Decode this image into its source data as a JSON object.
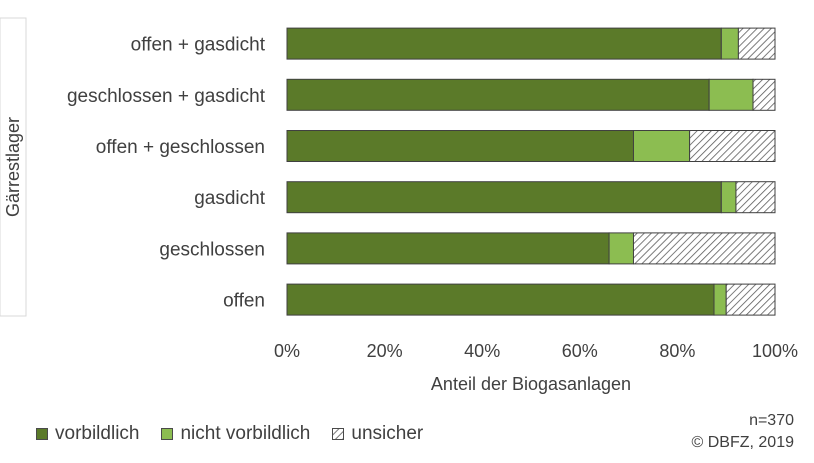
{
  "chart_data": {
    "type": "bar",
    "orientation": "horizontal",
    "stacked": true,
    "categories": [
      "offen + gasdicht",
      "geschlossen + gasdicht",
      "offen + geschlossen",
      "gasdicht",
      "geschlossen",
      "offen"
    ],
    "series": [
      {
        "name": "vorbildlich",
        "color": "#5b7a29",
        "values": [
          89,
          86.5,
          71,
          89,
          66,
          87.5
        ]
      },
      {
        "name": "nicht vorbildlich",
        "color": "#8cbd51",
        "values": [
          3.5,
          9,
          11.5,
          3,
          5,
          2.5
        ]
      },
      {
        "name": "unsicher",
        "color": "#ffffff",
        "pattern": "diagonal-hatch",
        "values": [
          7.5,
          4.5,
          17.5,
          8,
          29,
          10
        ]
      }
    ],
    "xlabel": "Anteil der Biogasanlagen",
    "ylabel": "Gärrestlager",
    "xlim": [
      0,
      100
    ],
    "x_ticks": [
      "0%",
      "20%",
      "40%",
      "60%",
      "80%",
      "100%"
    ],
    "legend_position": "bottom-left",
    "grid": false
  },
  "notes": {
    "n": "n=370",
    "copyright": "© DBFZ, 2019"
  }
}
